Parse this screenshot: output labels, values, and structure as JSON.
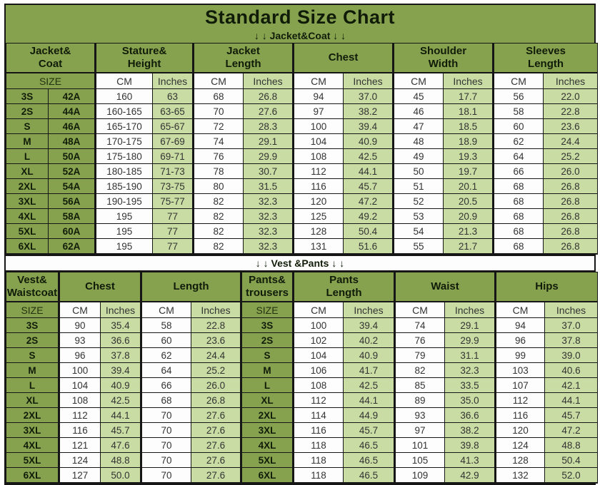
{
  "title": "Standard Size Chart",
  "colors": {
    "theme_green": "#87a24f",
    "light_green": "#c9dca3",
    "cell_white": "#fdfdfd",
    "border_black": "#161616"
  },
  "icons": {
    "down_arrow": "↓"
  },
  "tables": [
    {
      "divider": "↓ ↓  Jacket&Coat ↓ ↓",
      "groups": [
        {
          "label": "Jacket&\nCoat",
          "span": 2
        },
        {
          "label": "Stature&\nHeight",
          "span": 2
        },
        {
          "label": "Jacket\nLength",
          "span": 2
        },
        {
          "label": "Chest",
          "span": 2
        },
        {
          "label": "Shoulder\nWidth",
          "span": 2
        },
        {
          "label": "Sleeves\nLength",
          "span": 2
        }
      ],
      "subheader": [
        {
          "label": "SIZE",
          "span": 2
        },
        {
          "label": "CM"
        },
        {
          "label": "Inches"
        },
        {
          "label": "CM"
        },
        {
          "label": "Inches"
        },
        {
          "label": "CM"
        },
        {
          "label": "Inches"
        },
        {
          "label": "CM"
        },
        {
          "label": "Inches"
        },
        {
          "label": "CM"
        },
        {
          "label": "Inches"
        }
      ],
      "rows": [
        [
          "3S",
          "42A",
          "160",
          "63",
          "68",
          "26.8",
          "94",
          "37.0",
          "45",
          "17.7",
          "56",
          "22.0"
        ],
        [
          "2S",
          "44A",
          "160-165",
          "63-65",
          "70",
          "27.6",
          "97",
          "38.2",
          "46",
          "18.1",
          "58",
          "22.8"
        ],
        [
          "S",
          "46A",
          "165-170",
          "65-67",
          "72",
          "28.3",
          "100",
          "39.4",
          "47",
          "18.5",
          "60",
          "23.6"
        ],
        [
          "M",
          "48A",
          "170-175",
          "67-69",
          "74",
          "29.1",
          "104",
          "40.9",
          "48",
          "18.9",
          "62",
          "24.4"
        ],
        [
          "L",
          "50A",
          "175-180",
          "69-71",
          "76",
          "29.9",
          "108",
          "42.5",
          "49",
          "19.3",
          "64",
          "25.2"
        ],
        [
          "XL",
          "52A",
          "180-185",
          "71-73",
          "78",
          "30.7",
          "112",
          "44.1",
          "50",
          "19.7",
          "66",
          "26.0"
        ],
        [
          "2XL",
          "54A",
          "185-190",
          "73-75",
          "80",
          "31.5",
          "116",
          "45.7",
          "51",
          "20.1",
          "68",
          "26.8"
        ],
        [
          "3XL",
          "56A",
          "190-195",
          "75-77",
          "82",
          "32.3",
          "120",
          "47.2",
          "52",
          "20.5",
          "68",
          "26.8"
        ],
        [
          "4XL",
          "58A",
          "195",
          "77",
          "82",
          "32.3",
          "125",
          "49.2",
          "53",
          "20.9",
          "68",
          "26.8"
        ],
        [
          "5XL",
          "60A",
          "195",
          "77",
          "82",
          "32.3",
          "128",
          "50.4",
          "54",
          "21.3",
          "68",
          "26.8"
        ],
        [
          "6XL",
          "62A",
          "195",
          "77",
          "82",
          "32.3",
          "131",
          "51.6",
          "55",
          "21.7",
          "68",
          "26.8"
        ]
      ]
    },
    {
      "divider": "↓ ↓  Vest &Pants ↓ ↓",
      "groups": [
        {
          "label": "Vest&\nWaistcoat",
          "span": 1
        },
        {
          "label": "Chest",
          "span": 2
        },
        {
          "label": "Length",
          "span": 2
        },
        {
          "label": "Pants&\ntrousers",
          "span": 1
        },
        {
          "label": "Pants\nLength",
          "span": 2
        },
        {
          "label": "Waist",
          "span": 2
        },
        {
          "label": "Hips",
          "span": 2
        }
      ],
      "subheader": [
        {
          "label": "SIZE"
        },
        {
          "label": "CM"
        },
        {
          "label": "Inches"
        },
        {
          "label": "CM"
        },
        {
          "label": "Inches"
        },
        {
          "label": "SIZE"
        },
        {
          "label": "CM"
        },
        {
          "label": "Inches"
        },
        {
          "label": "CM"
        },
        {
          "label": "Inches"
        },
        {
          "label": "CM"
        },
        {
          "label": "Inches"
        }
      ],
      "rows": [
        [
          "3S",
          "90",
          "35.4",
          "58",
          "22.8",
          "3S",
          "100",
          "39.4",
          "74",
          "29.1",
          "94",
          "37.0"
        ],
        [
          "2S",
          "93",
          "36.6",
          "60",
          "23.6",
          "2S",
          "102",
          "40.2",
          "76",
          "29.9",
          "96",
          "37.8"
        ],
        [
          "S",
          "96",
          "37.8",
          "62",
          "24.4",
          "S",
          "104",
          "40.9",
          "79",
          "31.1",
          "99",
          "39.0"
        ],
        [
          "M",
          "100",
          "39.4",
          "64",
          "25.2",
          "M",
          "106",
          "41.7",
          "82",
          "32.3",
          "103",
          "40.6"
        ],
        [
          "L",
          "104",
          "40.9",
          "66",
          "26.0",
          "L",
          "108",
          "42.5",
          "85",
          "33.5",
          "107",
          "42.1"
        ],
        [
          "XL",
          "108",
          "42.5",
          "68",
          "26.8",
          "XL",
          "112",
          "44.1",
          "89",
          "35.0",
          "112",
          "44.1"
        ],
        [
          "2XL",
          "112",
          "44.1",
          "70",
          "27.6",
          "2XL",
          "114",
          "44.9",
          "93",
          "36.6",
          "116",
          "45.7"
        ],
        [
          "3XL",
          "116",
          "45.7",
          "70",
          "27.6",
          "3XL",
          "116",
          "45.7",
          "97",
          "38.2",
          "120",
          "47.2"
        ],
        [
          "4XL",
          "121",
          "47.6",
          "70",
          "27.6",
          "4XL",
          "118",
          "46.5",
          "101",
          "39.8",
          "124",
          "48.8"
        ],
        [
          "5XL",
          "124",
          "48.8",
          "70",
          "27.6",
          "5XL",
          "118",
          "46.5",
          "105",
          "41.3",
          "128",
          "50.4"
        ],
        [
          "6XL",
          "127",
          "50.0",
          "70",
          "27.6",
          "6XL",
          "118",
          "46.5",
          "109",
          "42.9",
          "132",
          "52.0"
        ]
      ]
    }
  ]
}
